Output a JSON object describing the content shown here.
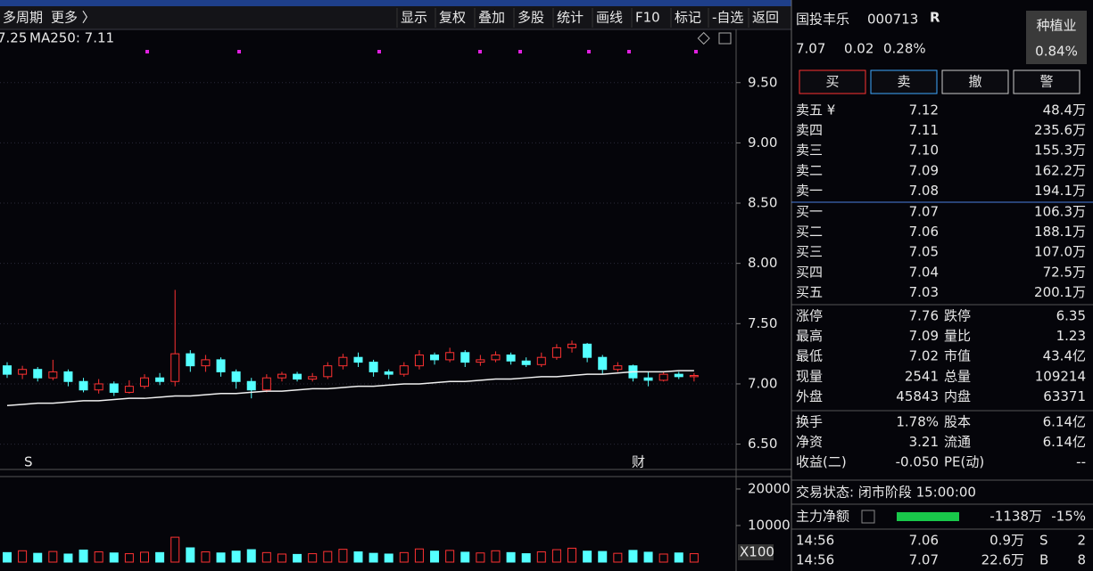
{
  "toolbar": {
    "left": [
      "多周期",
      "更多 〉"
    ],
    "buttons": [
      "显示",
      "复权",
      "叠加",
      "多股",
      "统计",
      "画线",
      "F10",
      "标记",
      "-自选",
      "返回"
    ]
  },
  "chart_data": {
    "type": "candlestick",
    "legend": [
      {
        "text": "7.25",
        "color": "#3b6cff"
      },
      {
        "text": "MA250: 7.11",
        "color": "#e8e8e8"
      }
    ],
    "ylim": [
      6.29,
      9.89
    ],
    "yticks": [
      {
        "value": 9.5,
        "label": "9.50"
      },
      {
        "value": 9,
        "label": "9.00"
      },
      {
        "value": 8.5,
        "label": "8.50"
      },
      {
        "value": 8,
        "label": "8.00"
      },
      {
        "value": 7.5,
        "label": "7.50"
      },
      {
        "value": 7,
        "label": "7.00"
      },
      {
        "value": 6.5,
        "label": "6.50"
      }
    ],
    "open": [
      7.15,
      7.08,
      7.12,
      7.05,
      7.1,
      7.02,
      6.95,
      7.0,
      6.93,
      6.98,
      7.05,
      7.02,
      7.25,
      7.15,
      7.2,
      7.1,
      7.02,
      6.95,
      7.05,
      7.08,
      7.04,
      7.06,
      7.15,
      7.22,
      7.18,
      7.1,
      7.08,
      7.15,
      7.24,
      7.2,
      7.26,
      7.18,
      7.2,
      7.24,
      7.19,
      7.16,
      7.22,
      7.3,
      7.33,
      7.22,
      7.12,
      7.15,
      7.05,
      7.03,
      7.08,
      7.06
    ],
    "close": [
      7.08,
      7.12,
      7.05,
      7.1,
      7.02,
      6.95,
      7.0,
      6.93,
      6.98,
      7.05,
      7.02,
      7.25,
      7.15,
      7.2,
      7.1,
      7.02,
      6.95,
      7.05,
      7.08,
      7.04,
      7.06,
      7.15,
      7.22,
      7.18,
      7.1,
      7.08,
      7.15,
      7.24,
      7.2,
      7.26,
      7.18,
      7.2,
      7.24,
      7.19,
      7.16,
      7.22,
      7.3,
      7.33,
      7.22,
      7.12,
      7.15,
      7.05,
      7.03,
      7.08,
      7.06,
      7.07
    ],
    "high": [
      7.18,
      7.15,
      7.14,
      7.2,
      7.12,
      7.05,
      7.04,
      7.02,
      7.03,
      7.08,
      7.09,
      7.78,
      7.28,
      7.24,
      7.22,
      7.12,
      7.05,
      7.08,
      7.1,
      7.1,
      7.09,
      7.18,
      7.25,
      7.26,
      7.2,
      7.12,
      7.18,
      7.28,
      7.26,
      7.3,
      7.28,
      7.24,
      7.27,
      7.26,
      7.22,
      7.26,
      7.33,
      7.36,
      7.34,
      7.24,
      7.18,
      7.16,
      7.1,
      7.1,
      7.1,
      7.09
    ],
    "low": [
      7.05,
      7.04,
      7.02,
      7.03,
      6.98,
      6.93,
      6.92,
      6.9,
      6.92,
      6.96,
      6.99,
      6.98,
      7.1,
      7.1,
      7.06,
      6.96,
      6.88,
      6.93,
      7.02,
      7.02,
      7.02,
      7.04,
      7.12,
      7.14,
      7.06,
      7.04,
      7.06,
      7.12,
      7.16,
      7.18,
      7.14,
      7.15,
      7.18,
      7.16,
      7.14,
      7.14,
      7.2,
      7.26,
      7.18,
      7.08,
      7.1,
      7.02,
      6.98,
      7.02,
      7.04,
      7.02
    ],
    "ma250": [
      6.82,
      6.83,
      6.84,
      6.84,
      6.85,
      6.86,
      6.86,
      6.87,
      6.88,
      6.88,
      6.89,
      6.9,
      6.9,
      6.91,
      6.92,
      6.92,
      6.93,
      6.94,
      6.94,
      6.95,
      6.96,
      6.96,
      6.97,
      6.98,
      6.98,
      6.99,
      7.0,
      7.0,
      7.01,
      7.02,
      7.02,
      7.03,
      7.04,
      7.04,
      7.05,
      7.06,
      7.06,
      7.07,
      7.08,
      7.08,
      7.09,
      7.1,
      7.1,
      7.1,
      7.11,
      7.11
    ],
    "volume": [
      2600,
      3100,
      2400,
      2900,
      2200,
      3300,
      2800,
      2500,
      2300,
      2700,
      2600,
      6800,
      3900,
      2800,
      2500,
      3000,
      3400,
      2600,
      2200,
      2100,
      2300,
      2900,
      3500,
      2800,
      2400,
      2200,
      2600,
      3600,
      3000,
      3200,
      2700,
      2500,
      3100,
      2600,
      2300,
      2800,
      3400,
      3800,
      3000,
      2900,
      2400,
      3200,
      2700,
      2200,
      2500,
      2300
    ],
    "vlim": [
      0,
      23400
    ],
    "vticks": [
      20000,
      10000
    ],
    "vscale": "X100",
    "markers": [
      "S",
      "财"
    ]
  },
  "quote": {
    "name": "国投丰乐",
    "code": "000713",
    "badge": "R",
    "price": "7.07",
    "change": "0.02",
    "pct": "0.28%",
    "sector": "种植业",
    "sector_pct": "0.84%"
  },
  "actions": [
    "买",
    "卖",
    "撤",
    "警"
  ],
  "orderbook": {
    "asks": [
      {
        "label": "卖五 ¥",
        "price": "7.12",
        "color": "#ff3b3b",
        "volume": "48.4万"
      },
      {
        "label": "卖四",
        "price": "7.11",
        "color": "#ff3b3b",
        "volume": "235.6万"
      },
      {
        "label": "卖三",
        "price": "7.10",
        "color": "#ff3b3b",
        "volume": "155.3万"
      },
      {
        "label": "卖二",
        "price": "7.09",
        "color": "#ff3b3b",
        "volume": "162.2万"
      },
      {
        "label": "卖一",
        "price": "7.08",
        "color": "#ff3b3b",
        "volume": "194.1万"
      }
    ],
    "bids": [
      {
        "label": "买一",
        "price": "7.07",
        "color": "#ff3b3b",
        "volume": "106.3万"
      },
      {
        "label": "买二",
        "price": "7.06",
        "color": "#ff3b3b",
        "volume": "188.1万"
      },
      {
        "label": "买三",
        "price": "7.05",
        "color": "#e8e8e8",
        "volume": "107.0万"
      },
      {
        "label": "买四",
        "price": "7.04",
        "color": "#19e619",
        "volume": "72.5万"
      },
      {
        "label": "买五",
        "price": "7.03",
        "color": "#19e619",
        "volume": "200.1万"
      }
    ]
  },
  "stats": [
    [
      {
        "label": "涨停",
        "value": "7.76",
        "color": "#ff3b3b",
        "label2": "跌停",
        "value2": "6.35",
        "color2": "#19e619"
      },
      {
        "label": "最高",
        "value": "7.09",
        "color": "#ff3b3b",
        "label2": "量比",
        "value2": "1.23",
        "color2": "#ff3b3b"
      },
      {
        "label": "最低",
        "value": "7.02",
        "color": "#19e619",
        "label2": "市值",
        "value2": "43.4亿",
        "color2": "#e8e8e8"
      },
      {
        "label": "现量",
        "value": "2541",
        "color": "#e020e0",
        "label2": "总量",
        "value2": "109214",
        "color2": "#e8e8e8"
      },
      {
        "label": "外盘",
        "value": "45843",
        "color": "#ff3b3b",
        "label2": "内盘",
        "value2": "63371",
        "color2": "#19e619"
      }
    ],
    [
      {
        "label": "换手",
        "value": "1.78%",
        "color": "#e8e8e8",
        "label2": "股本",
        "value2": "6.14亿",
        "color2": "#e8e8e8"
      },
      {
        "label": "净资",
        "value": "3.21",
        "color": "#e8e8e8",
        "label2": "流通",
        "value2": "6.14亿",
        "color2": "#e8e8e8"
      },
      {
        "label": "收益(二)",
        "value": "-0.050",
        "color": "#e8e8e8",
        "label2": "PE(动)",
        "value2": "--",
        "color2": "#e8e8e8"
      }
    ]
  ],
  "status": "交易状态: 闭市阶段 15:00:00",
  "netflow": {
    "label": "主力净额",
    "amount": "-1138万",
    "pct": "-15%"
  },
  "ticks": [
    {
      "time": "14:56",
      "price": "7.06",
      "volume": "0.9万",
      "side": "S",
      "side_color": "#19e619",
      "count": "2"
    },
    {
      "time": "14:56",
      "price": "7.07",
      "volume": "22.6万",
      "side": "B",
      "side_color": "#ff3b3b",
      "count": "8"
    }
  ]
}
